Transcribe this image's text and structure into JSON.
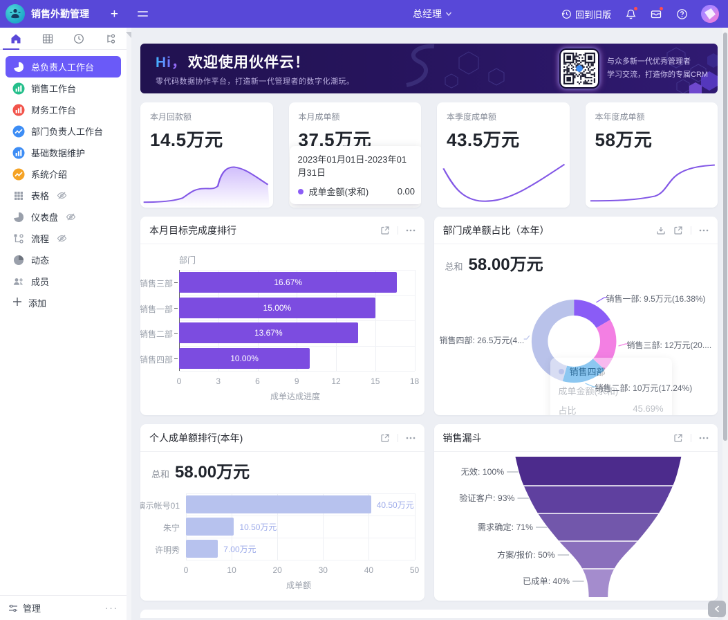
{
  "app": {
    "title": "销售外勤管理"
  },
  "topbar": {
    "add_label": "+",
    "menu_icon": "hamburger-icon",
    "role": "总经理",
    "back_to_old": "回到旧版",
    "right_icons": [
      {
        "name": "history-icon",
        "label": "回到旧版"
      },
      {
        "name": "bell-icon",
        "badge": true
      },
      {
        "name": "briefcase-icon",
        "badge": true
      },
      {
        "name": "help-icon"
      }
    ]
  },
  "tabs": [
    {
      "icon": "home-icon",
      "active": true
    },
    {
      "icon": "table-icon",
      "active": false
    },
    {
      "icon": "clock-icon",
      "active": false
    },
    {
      "icon": "flow-icon",
      "active": false
    }
  ],
  "sidebar": {
    "items": [
      {
        "label": "总负责人工作台",
        "icon": "pie-chart-icon",
        "color": "#ffffff",
        "active": true
      },
      {
        "label": "销售工作台",
        "icon": "bar-chart-icon",
        "color": "#25bf8b"
      },
      {
        "label": "财务工作台",
        "icon": "bar-chart-icon",
        "color": "#f2544b"
      },
      {
        "label": "部门负责人工作台",
        "icon": "line-chart-icon",
        "color": "#3d8df5"
      },
      {
        "label": "基础数据维护",
        "icon": "bar-chart-icon",
        "color": "#3d8df5"
      },
      {
        "label": "系统介绍",
        "icon": "line-chart-icon",
        "color": "#f5a325"
      },
      {
        "label": "表格",
        "icon": "grid-icon",
        "color": "#9aa0ab",
        "hidden_eye": true
      },
      {
        "label": "仪表盘",
        "icon": "dashboard-icon",
        "color": "#9aa0ab",
        "hidden_eye": true
      },
      {
        "label": "流程",
        "icon": "workflow-icon",
        "color": "#9aa0ab",
        "hidden_eye": true
      },
      {
        "label": "动态",
        "icon": "activity-icon",
        "color": "#9aa0ab"
      },
      {
        "label": "成员",
        "icon": "members-icon",
        "color": "#9aa0ab"
      },
      {
        "label": "添加",
        "icon": "plus-icon",
        "color": "#555b66",
        "add": true
      }
    ],
    "footer": {
      "label": "管理",
      "more": "···"
    }
  },
  "banner": {
    "hi": "Hi，",
    "title": "欢迎使用伙伴云！",
    "subtitle": "零代码数据协作平台，打造新一代管理者的数字化潮玩。",
    "qr_line1": "与众多新一代优秀管理者",
    "qr_line2": "学习交流，打造你的专属CRM"
  },
  "stats": [
    {
      "label": "本月回款额",
      "value": "14.5万元",
      "spark": "area-bumpy"
    },
    {
      "label": "本月成单额",
      "value": "37.5万元",
      "spark": "line-rise-right",
      "tooltip": {
        "date_range": "2023年01月01日-2023年01月31日",
        "series": "成单金额(求和)",
        "value": "0.00"
      }
    },
    {
      "label": "本季度成单额",
      "value": "43.5万元",
      "spark": "line-dip"
    },
    {
      "label": "本年度成单额",
      "value": "58万元",
      "spark": "line-scurve"
    }
  ],
  "chart_data": [
    {
      "id": "monthly-target-rank",
      "type": "bar",
      "orientation": "horizontal",
      "title": "本月目标完成度排行",
      "categories": [
        "销售三部",
        "销售一部",
        "销售二部",
        "销售四部"
      ],
      "values": [
        16.67,
        15.0,
        13.67,
        10.0
      ],
      "bar_labels": [
        "16.67%",
        "15.00%",
        "13.67%",
        "10.00%"
      ],
      "xlabel": "成单达成进度",
      "ylabel": "部门",
      "xlim": [
        0,
        18
      ],
      "xticks": [
        0,
        3,
        6,
        9,
        12,
        15,
        18
      ],
      "bar_color": "#7c4ce0",
      "header_icons": [
        "expand-icon",
        "more-icon"
      ]
    },
    {
      "id": "dept-share",
      "type": "pie",
      "title": "部门成单额占比（本年）",
      "total_label": "总和",
      "total_value": "58.00万元",
      "slices": [
        {
          "name": "销售一部",
          "pct": 16.38,
          "color": "#8a5cf6",
          "label": "销售一部: 9.5万元(16.38%)"
        },
        {
          "name": "销售三部",
          "pct": 20.69,
          "color": "#f37fe3",
          "label": "销售三部: 12万元(20...."
        },
        {
          "name": "销售二部",
          "pct": 17.24,
          "color": "#2e9ae6",
          "label": "销售二部: 10万元(17.24%)"
        },
        {
          "name": "销售四部",
          "pct": 45.69,
          "color": "#b9c2ea",
          "label": "销售四部: 26.5万元(4..."
        }
      ],
      "tooltip": {
        "title": "销售四部",
        "row1_label": "成单金额(求和)",
        "row1_value": "",
        "row2_label": "占比",
        "row2_value": "45.69%"
      },
      "header_icons": [
        "download-icon",
        "expand-icon",
        "more-icon"
      ]
    },
    {
      "id": "personal-rank",
      "type": "bar",
      "orientation": "horizontal",
      "title": "个人成单额排行(本年)",
      "total_label": "总和",
      "total_value": "58.00万元",
      "categories": [
        "演示帐号01",
        "朱宁",
        "许明秀"
      ],
      "values": [
        40.5,
        10.5,
        7.0
      ],
      "bar_labels": [
        "40.50万元",
        "10.50万元",
        "7.00万元"
      ],
      "xlabel": "成单额",
      "xlim": [
        0,
        50
      ],
      "xticks": [
        0,
        10,
        20,
        30,
        40,
        50
      ],
      "bar_color": "#b7c2ee",
      "header_icons": [
        "expand-icon",
        "more-icon"
      ]
    },
    {
      "id": "sales-funnel",
      "type": "funnel",
      "title": "销售漏斗",
      "stages": [
        {
          "label": "无效",
          "pct": "100%",
          "color": "#4c2b8c"
        },
        {
          "label": "验证客户",
          "pct": "93%",
          "color": "#5f409f"
        },
        {
          "label": "需求确定",
          "pct": "71%",
          "color": "#7257ab"
        },
        {
          "label": "方案/报价",
          "pct": "50%",
          "color": "#8a6fbc"
        },
        {
          "label": "已成单",
          "pct": "40%",
          "color": "#a48ccd"
        }
      ],
      "header_icons": [
        "expand-icon",
        "more-icon"
      ]
    }
  ]
}
